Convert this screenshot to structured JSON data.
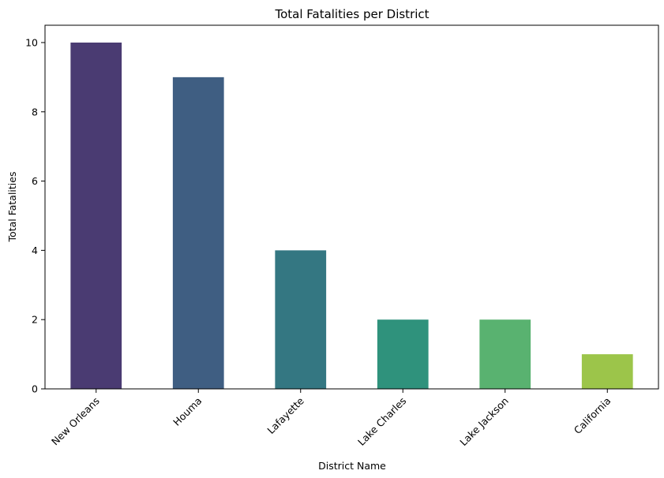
{
  "chart_data": {
    "type": "bar",
    "title": "Total Fatalities per District",
    "xlabel": "District Name",
    "ylabel": "Total Fatalities",
    "categories": [
      "New Orleans",
      "Houma",
      "Lafayette",
      "Lake Charles",
      "Lake Jackson",
      "California"
    ],
    "values": [
      10,
      9,
      4,
      2,
      2,
      1
    ],
    "colors": [
      "#4a3b72",
      "#3f5e82",
      "#347782",
      "#2f927c",
      "#59b270",
      "#9cc54a"
    ],
    "ylim": [
      0,
      10.5
    ],
    "yticks": [
      0,
      2,
      4,
      6,
      8,
      10
    ],
    "grid": false,
    "x_tick_rotation": 45
  }
}
